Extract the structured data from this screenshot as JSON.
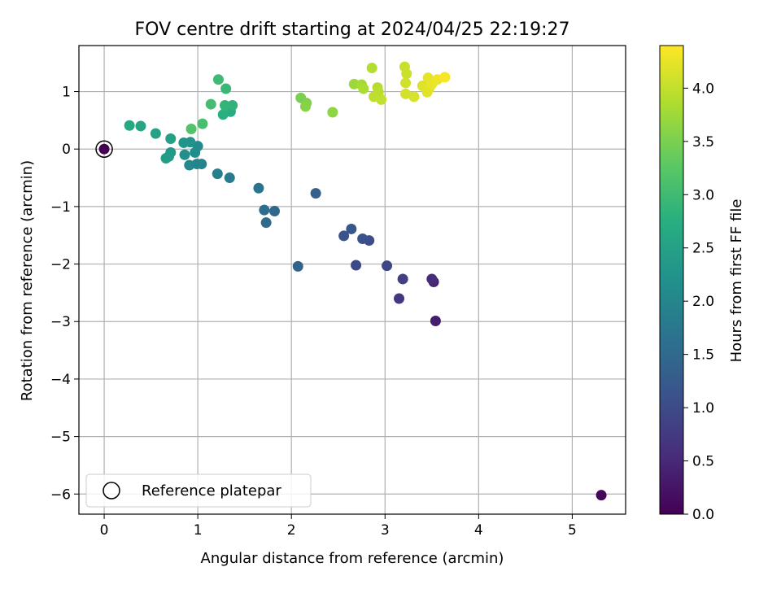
{
  "chart_data": {
    "type": "scatter",
    "title": "FOV centre drift starting at 2024/04/25 22:19:27",
    "xlabel": "Angular distance from reference (arcmin)",
    "ylabel": "Rotation from reference (arcmin)",
    "xlim": [
      -0.27,
      5.57
    ],
    "ylim": [
      -6.35,
      1.8
    ],
    "x_ticks": [
      0,
      1,
      2,
      3,
      4,
      5
    ],
    "y_ticks": [
      -6,
      -5,
      -4,
      -3,
      -2,
      -1,
      0,
      1
    ],
    "x_tick_labels": [
      "0",
      "1",
      "2",
      "3",
      "4",
      "5"
    ],
    "y_tick_labels": [
      "−6",
      "−5",
      "−4",
      "−3",
      "−2",
      "−1",
      "0",
      "1"
    ],
    "grid": true,
    "colormap": "viridis",
    "colorbar": {
      "label": "Hours from first FF file",
      "range": [
        0,
        4.4
      ],
      "ticks": [
        0.0,
        0.5,
        1.0,
        1.5,
        2.0,
        2.5,
        3.0,
        3.5,
        4.0
      ],
      "tick_labels": [
        "0.0",
        "0.5",
        "1.0",
        "1.5",
        "2.0",
        "2.5",
        "3.0",
        "3.5",
        "4.0"
      ]
    },
    "legend": {
      "position": "lower-left",
      "entries": [
        {
          "label": "Reference platepar",
          "marker": "open-circle"
        }
      ]
    },
    "reference_point": {
      "x": 0,
      "y": 0
    },
    "points": [
      {
        "x": 0.0,
        "y": 0.0,
        "h": 0.0
      },
      {
        "x": 5.31,
        "y": -6.02,
        "h": 0.08
      },
      {
        "x": 3.54,
        "y": -2.99,
        "h": 0.35
      },
      {
        "x": 3.52,
        "y": -2.31,
        "h": 0.45
      },
      {
        "x": 3.5,
        "y": -2.26,
        "h": 0.55
      },
      {
        "x": 3.15,
        "y": -2.6,
        "h": 0.75
      },
      {
        "x": 3.19,
        "y": -2.26,
        "h": 0.85
      },
      {
        "x": 3.02,
        "y": -2.03,
        "h": 0.95
      },
      {
        "x": 2.69,
        "y": -2.02,
        "h": 1.0
      },
      {
        "x": 2.83,
        "y": -1.59,
        "h": 1.05
      },
      {
        "x": 2.76,
        "y": -1.56,
        "h": 1.1
      },
      {
        "x": 2.56,
        "y": -1.51,
        "h": 1.15
      },
      {
        "x": 2.64,
        "y": -1.39,
        "h": 1.2
      },
      {
        "x": 2.26,
        "y": -0.77,
        "h": 1.35
      },
      {
        "x": 2.07,
        "y": -2.04,
        "h": 1.4
      },
      {
        "x": 1.82,
        "y": -1.08,
        "h": 1.5
      },
      {
        "x": 1.73,
        "y": -1.28,
        "h": 1.55
      },
      {
        "x": 1.71,
        "y": -1.06,
        "h": 1.6
      },
      {
        "x": 1.65,
        "y": -0.68,
        "h": 1.7
      },
      {
        "x": 1.34,
        "y": -0.5,
        "h": 1.85
      },
      {
        "x": 1.21,
        "y": -0.43,
        "h": 1.9
      },
      {
        "x": 1.04,
        "y": -0.26,
        "h": 1.95
      },
      {
        "x": 0.99,
        "y": -0.26,
        "h": 2.0
      },
      {
        "x": 0.91,
        "y": -0.28,
        "h": 2.05
      },
      {
        "x": 1.0,
        "y": 0.05,
        "h": 2.1
      },
      {
        "x": 0.97,
        "y": -0.06,
        "h": 2.15
      },
      {
        "x": 0.86,
        "y": -0.1,
        "h": 2.2
      },
      {
        "x": 0.92,
        "y": 0.12,
        "h": 2.25
      },
      {
        "x": 0.85,
        "y": 0.11,
        "h": 2.3
      },
      {
        "x": 0.71,
        "y": -0.06,
        "h": 2.35
      },
      {
        "x": 0.69,
        "y": -0.13,
        "h": 2.4
      },
      {
        "x": 0.66,
        "y": -0.16,
        "h": 2.45
      },
      {
        "x": 0.71,
        "y": 0.18,
        "h": 2.5
      },
      {
        "x": 0.55,
        "y": 0.27,
        "h": 2.55
      },
      {
        "x": 0.39,
        "y": 0.4,
        "h": 2.6
      },
      {
        "x": 0.27,
        "y": 0.41,
        "h": 2.65
      },
      {
        "x": 1.35,
        "y": 0.65,
        "h": 2.75
      },
      {
        "x": 1.27,
        "y": 0.6,
        "h": 2.8
      },
      {
        "x": 1.37,
        "y": 0.76,
        "h": 2.85
      },
      {
        "x": 1.29,
        "y": 0.76,
        "h": 2.9
      },
      {
        "x": 1.3,
        "y": 1.05,
        "h": 2.95
      },
      {
        "x": 1.22,
        "y": 1.21,
        "h": 3.0
      },
      {
        "x": 1.14,
        "y": 0.78,
        "h": 3.05
      },
      {
        "x": 1.05,
        "y": 0.44,
        "h": 3.1
      },
      {
        "x": 0.93,
        "y": 0.35,
        "h": 3.2
      },
      {
        "x": 2.1,
        "y": 0.89,
        "h": 3.5
      },
      {
        "x": 2.16,
        "y": 0.8,
        "h": 3.55
      },
      {
        "x": 2.15,
        "y": 0.74,
        "h": 3.6
      },
      {
        "x": 2.44,
        "y": 0.64,
        "h": 3.65
      },
      {
        "x": 2.67,
        "y": 1.13,
        "h": 3.75
      },
      {
        "x": 2.75,
        "y": 1.12,
        "h": 3.8
      },
      {
        "x": 2.77,
        "y": 1.05,
        "h": 3.85
      },
      {
        "x": 2.86,
        "y": 1.41,
        "h": 3.9
      },
      {
        "x": 2.92,
        "y": 1.07,
        "h": 3.92
      },
      {
        "x": 2.93,
        "y": 0.99,
        "h": 3.95
      },
      {
        "x": 2.88,
        "y": 0.91,
        "h": 3.98
      },
      {
        "x": 2.96,
        "y": 0.86,
        "h": 4.0
      },
      {
        "x": 3.21,
        "y": 1.43,
        "h": 4.05
      },
      {
        "x": 3.23,
        "y": 1.31,
        "h": 4.07
      },
      {
        "x": 3.22,
        "y": 1.15,
        "h": 4.1
      },
      {
        "x": 3.22,
        "y": 0.96,
        "h": 4.12
      },
      {
        "x": 3.31,
        "y": 0.91,
        "h": 4.15
      },
      {
        "x": 3.4,
        "y": 1.1,
        "h": 4.18
      },
      {
        "x": 3.45,
        "y": 0.99,
        "h": 4.2
      },
      {
        "x": 3.47,
        "y": 1.05,
        "h": 4.22
      },
      {
        "x": 3.46,
        "y": 1.24,
        "h": 4.25
      },
      {
        "x": 3.5,
        "y": 1.13,
        "h": 4.27
      },
      {
        "x": 3.56,
        "y": 1.21,
        "h": 4.3
      },
      {
        "x": 3.64,
        "y": 1.25,
        "h": 4.35
      }
    ]
  }
}
